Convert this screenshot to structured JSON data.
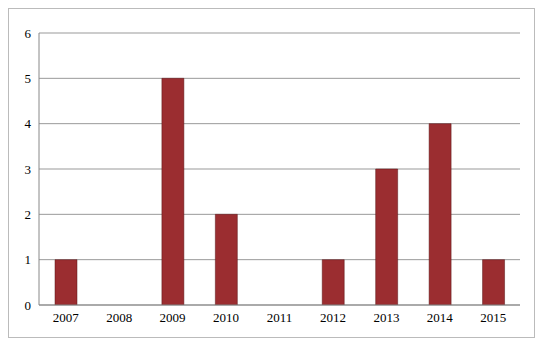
{
  "chart_data": {
    "type": "bar",
    "categories": [
      "2007",
      "2008",
      "2009",
      "2010",
      "2011",
      "2012",
      "2013",
      "2014",
      "2015"
    ],
    "values": [
      1,
      0,
      5,
      2,
      0,
      1,
      3,
      4,
      1
    ],
    "color": "#9b2d30",
    "ylim": [
      0,
      6
    ],
    "yticks": [
      0,
      1,
      2,
      3,
      4,
      5,
      6
    ],
    "grid": true
  }
}
